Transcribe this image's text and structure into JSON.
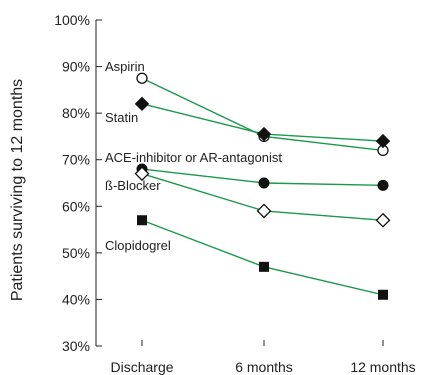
{
  "chart_data": {
    "type": "line",
    "title": "",
    "xlabel": "",
    "ylabel": "Patients surviving to 12 months",
    "categories": [
      "Discharge",
      "6 months",
      "12 months"
    ],
    "ylim": [
      30,
      100
    ],
    "yticks": [
      "30%",
      "40%",
      "50%",
      "60%",
      "70%",
      "80%",
      "90%",
      "100%"
    ],
    "grid": false,
    "line_color": "#1a9a4a",
    "series": [
      {
        "name": "Aspirin",
        "marker": "circle-open",
        "values": [
          87.5,
          75,
          72
        ]
      },
      {
        "name": "Statin",
        "marker": "diamond-filled",
        "values": [
          82,
          75.5,
          74
        ]
      },
      {
        "name": "ACE-inhibitor or AR-antagonist",
        "marker": "circle-filled",
        "values": [
          68,
          65,
          64.5
        ]
      },
      {
        "name": "ß-Blocker",
        "marker": "diamond-open",
        "values": [
          67,
          59,
          57
        ]
      },
      {
        "name": "Clopidogrel",
        "marker": "square-filled",
        "values": [
          57,
          47,
          41
        ]
      }
    ]
  }
}
